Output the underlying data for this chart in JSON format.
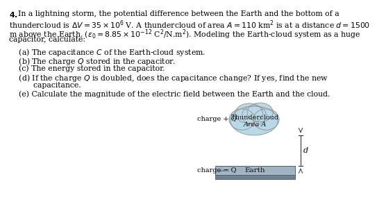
{
  "bg_color": "#ffffff",
  "text_color": "#000000",
  "fontsize": 7.8,
  "diagram": {
    "cloud_color": "#b8d8e8",
    "cloud_edge_color": "#909090",
    "earth_top_color": "#a0b4c4",
    "earth_bottom_color": "#708090",
    "earth_edge_color": "#506070"
  },
  "main_lines": [
    [
      "bold",
      "4. ",
      "normal",
      "In a lightning storm, the potential difference between the Earth and the bottom of a"
    ],
    [
      "normal",
      "thundercloud is $\\Delta V = 35 \\times 10^6$ V. A thundercloud of area $A = 110$ km$^2$ is at a distance $d = 1500$"
    ],
    [
      "normal",
      "m above the Earth. $(\\varepsilon_0 = 8.85 \\times 10^{-12}$ C$^2$/N.m$^2)$. Modeling the Earth-cloud system as a huge"
    ],
    [
      "normal",
      "capacitor, calculate:"
    ]
  ],
  "sub_lines": [
    "    (a) The capacitance $C$ of the Earth-cloud system.",
    "    (b) The charge $Q$ stored in the capacitor.",
    "    (c) The energy stored in the capacitor.",
    "    (d) If the charge $Q$ is doubled, does the capacitance change? If yes, find the new",
    "          capacitance.",
    "    (e) Calculate the magnitude of the electric field between the Earth and the cloud."
  ]
}
